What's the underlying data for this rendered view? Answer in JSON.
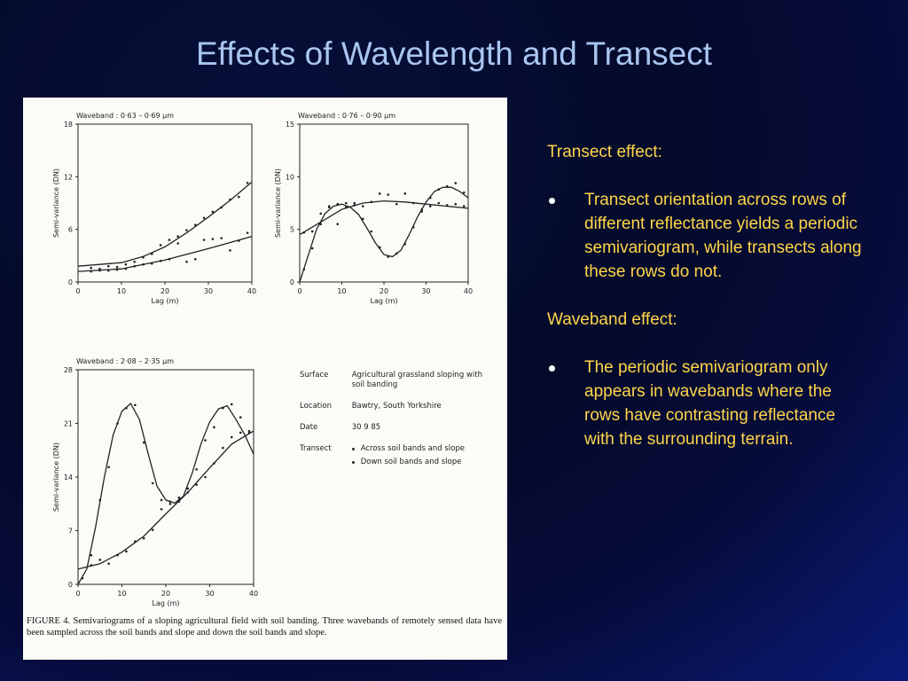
{
  "slide": {
    "title": "Effects of Wavelength and Transect"
  },
  "right_panel": {
    "section1_heading": "Transect effect:",
    "section1_bullet": "Transect orientation across rows of different reflectance yields a periodic semivariogram, while transects along these rows do not.",
    "section2_heading": "Waveband effect:",
    "section2_bullet": "The periodic semivariogram only appears in wavebands where the rows have contrasting reflectance with the surrounding terrain."
  },
  "figure": {
    "caption": "FIGURE 4.  Semivariograms of a sloping agricultural field with soil banding. Three wavebands of remotely sensed data have been sampled across the soil bands and slope and down the soil bands and slope.",
    "legend": {
      "surface_label": "Surface",
      "surface_value": "Agricultural grassland sloping with soil banding",
      "location_label": "Location",
      "location_value": "Bawtry, South Yorkshire",
      "date_label": "Date",
      "date_value": "30 9 85",
      "transect_label": "Transect",
      "transect_across": "Across soil bands and slope",
      "transect_down": "Down soil bands and slope"
    }
  },
  "chart_data": [
    {
      "type": "scatter",
      "title": "Waveband : 0·63 – 0·69 µm",
      "xlabel": "Lag (m)",
      "ylabel": "Semi-variance (DN)",
      "xlim": [
        0,
        40
      ],
      "ylim": [
        0,
        18
      ],
      "xticks": [
        0,
        10,
        20,
        30,
        40
      ],
      "yticks": [
        0,
        6,
        12,
        18
      ],
      "series": [
        {
          "points": [
            [
              3,
              1.6
            ],
            [
              5,
              1.5
            ],
            [
              7,
              1.8
            ],
            [
              9,
              1.7
            ],
            [
              11,
              2.0
            ],
            [
              13,
              2.3
            ],
            [
              15,
              2.8
            ],
            [
              17,
              3.2
            ],
            [
              19,
              4.2
            ],
            [
              21,
              4.8
            ],
            [
              23,
              5.2
            ],
            [
              25,
              5.9
            ],
            [
              27,
              6.5
            ],
            [
              29,
              7.3
            ],
            [
              31,
              8.0
            ],
            [
              33,
              8.5
            ],
            [
              35,
              9.4
            ],
            [
              37,
              9.7
            ],
            [
              39,
              11.3
            ]
          ],
          "curve": [
            [
              0,
              1.8
            ],
            [
              10,
              2.2
            ],
            [
              15,
              2.9
            ],
            [
              20,
              4.0
            ],
            [
              25,
              5.6
            ],
            [
              30,
              7.4
            ],
            [
              35,
              9.3
            ],
            [
              40,
              11.4
            ]
          ]
        },
        {
          "points": [
            [
              3,
              1.2
            ],
            [
              5,
              1.3
            ],
            [
              7,
              1.3
            ],
            [
              9,
              1.4
            ],
            [
              11,
              1.5
            ],
            [
              13,
              1.8
            ],
            [
              15,
              2.0
            ],
            [
              17,
              2.1
            ],
            [
              19,
              2.4
            ],
            [
              21,
              2.6
            ],
            [
              23,
              4.4
            ],
            [
              25,
              2.3
            ],
            [
              27,
              2.6
            ],
            [
              29,
              4.8
            ],
            [
              31,
              4.9
            ],
            [
              33,
              5.0
            ],
            [
              35,
              3.6
            ],
            [
              37,
              4.7
            ],
            [
              39,
              5.6
            ]
          ],
          "curve": [
            [
              0,
              1.2
            ],
            [
              10,
              1.5
            ],
            [
              20,
              2.5
            ],
            [
              30,
              3.8
            ],
            [
              40,
              5.2
            ]
          ]
        }
      ]
    },
    {
      "type": "scatter",
      "title": "Waveband : 0·76 – 0·90 µm",
      "xlabel": "Lag (m)",
      "ylabel": "Semi-variance (DN)",
      "xlim": [
        0,
        40
      ],
      "ylim": [
        0,
        15
      ],
      "xticks": [
        0,
        10,
        20,
        30,
        40
      ],
      "yticks": [
        0,
        5,
        10,
        15
      ],
      "series": [
        {
          "points": [
            [
              1,
              1.2
            ],
            [
              3,
              3.2
            ],
            [
              5,
              5.5
            ],
            [
              7,
              7.2
            ],
            [
              9,
              7.4
            ],
            [
              11,
              7.1
            ],
            [
              13,
              7.3
            ],
            [
              15,
              6.0
            ],
            [
              17,
              4.8
            ],
            [
              19,
              3.3
            ],
            [
              21,
              2.4
            ],
            [
              23,
              2.7
            ],
            [
              25,
              3.6
            ],
            [
              27,
              5.2
            ],
            [
              29,
              6.9
            ],
            [
              31,
              8.0
            ],
            [
              33,
              8.8
            ],
            [
              35,
              9.1
            ],
            [
              37,
              9.4
            ],
            [
              39,
              8.5
            ]
          ],
          "curve": [
            [
              0,
              0
            ],
            [
              2,
              2.5
            ],
            [
              4,
              5.0
            ],
            [
              6,
              6.5
            ],
            [
              8,
              7.2
            ],
            [
              10,
              7.4
            ],
            [
              12,
              7.1
            ],
            [
              14,
              6.4
            ],
            [
              16,
              5.1
            ],
            [
              18,
              3.7
            ],
            [
              20,
              2.6
            ],
            [
              22,
              2.4
            ],
            [
              24,
              3.0
            ],
            [
              26,
              4.5
            ],
            [
              28,
              6.2
            ],
            [
              30,
              7.6
            ],
            [
              32,
              8.6
            ],
            [
              34,
              9.0
            ],
            [
              36,
              9.0
            ],
            [
              38,
              8.6
            ],
            [
              40,
              8.0
            ]
          ]
        },
        {
          "points": [
            [
              1,
              4.7
            ],
            [
              3,
              4.8
            ],
            [
              5,
              6.5
            ],
            [
              7,
              7.1
            ],
            [
              9,
              5.5
            ],
            [
              11,
              7.5
            ],
            [
              13,
              7.5
            ],
            [
              15,
              7.2
            ],
            [
              17,
              7.6
            ],
            [
              19,
              8.4
            ],
            [
              21,
              8.3
            ],
            [
              23,
              7.4
            ],
            [
              25,
              8.4
            ],
            [
              27,
              7.5
            ],
            [
              29,
              6.7
            ],
            [
              31,
              7.2
            ],
            [
              33,
              7.5
            ],
            [
              35,
              7.3
            ],
            [
              37,
              7.4
            ],
            [
              39,
              7.2
            ]
          ],
          "curve": [
            [
              0,
              4.5
            ],
            [
              5,
              5.7
            ],
            [
              10,
              6.9
            ],
            [
              15,
              7.5
            ],
            [
              20,
              7.7
            ],
            [
              25,
              7.6
            ],
            [
              30,
              7.4
            ],
            [
              35,
              7.2
            ],
            [
              40,
              7.0
            ]
          ]
        }
      ]
    },
    {
      "type": "scatter",
      "title": "Waveband : 2·08 – 2·35 µm",
      "xlabel": "Lag (m)",
      "ylabel": "Semi-variance (DN)",
      "xlim": [
        0,
        40
      ],
      "ylim": [
        0,
        28
      ],
      "xticks": [
        0,
        10,
        20,
        30,
        40
      ],
      "yticks": [
        0,
        7,
        14,
        21,
        28
      ],
      "series": [
        {
          "points": [
            [
              1,
              0.8
            ],
            [
              3,
              2.5
            ],
            [
              5,
              11.0
            ],
            [
              7,
              15.3
            ],
            [
              9,
              21.0
            ],
            [
              11,
              23.0
            ],
            [
              13,
              23.4
            ],
            [
              15,
              18.5
            ],
            [
              17,
              13.2
            ],
            [
              19,
              11.0
            ],
            [
              21,
              10.5
            ],
            [
              23,
              10.8
            ],
            [
              25,
              12.5
            ],
            [
              27,
              15.0
            ],
            [
              29,
              18.8
            ],
            [
              31,
              20.5
            ],
            [
              33,
              23.0
            ],
            [
              35,
              23.5
            ],
            [
              37,
              21.8
            ],
            [
              39,
              19.8
            ]
          ],
          "curve": [
            [
              0,
              0
            ],
            [
              2,
              2.0
            ],
            [
              4,
              7.5
            ],
            [
              6,
              14.0
            ],
            [
              8,
              19.5
            ],
            [
              10,
              22.6
            ],
            [
              12,
              23.6
            ],
            [
              14,
              21.5
            ],
            [
              16,
              17.0
            ],
            [
              18,
              12.8
            ],
            [
              20,
              11.0
            ],
            [
              22,
              10.6
            ],
            [
              24,
              11.5
            ],
            [
              26,
              14.5
            ],
            [
              28,
              18.3
            ],
            [
              30,
              21.2
            ],
            [
              32,
              22.9
            ],
            [
              34,
              23.3
            ],
            [
              36,
              21.5
            ],
            [
              38,
              19.5
            ],
            [
              40,
              17.0
            ]
          ]
        },
        {
          "points": [
            [
              3,
              3.8
            ],
            [
              5,
              3.2
            ],
            [
              7,
              2.7
            ],
            [
              9,
              3.8
            ],
            [
              11,
              4.3
            ],
            [
              13,
              5.6
            ],
            [
              15,
              6.0
            ],
            [
              17,
              7.1
            ],
            [
              19,
              9.8
            ],
            [
              21,
              10.8
            ],
            [
              23,
              11.3
            ],
            [
              25,
              12.0
            ],
            [
              27,
              13.0
            ],
            [
              29,
              14.0
            ],
            [
              31,
              15.8
            ],
            [
              33,
              17.8
            ],
            [
              35,
              19.2
            ],
            [
              37,
              19.8
            ],
            [
              39,
              20.0
            ]
          ],
          "curve": [
            [
              0,
              2.0
            ],
            [
              5,
              2.7
            ],
            [
              10,
              4.2
            ],
            [
              15,
              6.3
            ],
            [
              20,
              9.2
            ],
            [
              25,
              12.0
            ],
            [
              30,
              15.2
            ],
            [
              35,
              18.3
            ],
            [
              40,
              20.0
            ]
          ]
        }
      ]
    }
  ]
}
